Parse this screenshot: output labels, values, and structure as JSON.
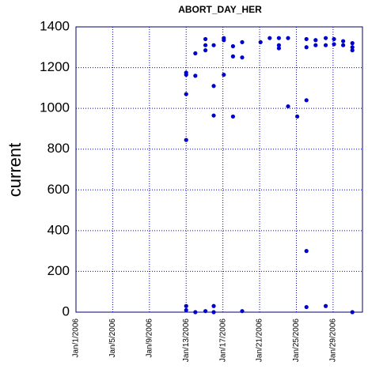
{
  "chart_data": {
    "type": "scatter",
    "title": "ABORT_DAY_HER",
    "y_label": "current",
    "xlim": [
      0,
      31.2
    ],
    "xticks": [
      {
        "value": 0,
        "label": "Jan/1/2006"
      },
      {
        "value": 4,
        "label": "Jan/5/2006"
      },
      {
        "value": 8,
        "label": "Jan/9/2006"
      },
      {
        "value": 12,
        "label": "Jan/13/2006"
      },
      {
        "value": 16,
        "label": "Jan/17/2006"
      },
      {
        "value": 20,
        "label": "Jan/21/2006"
      },
      {
        "value": 24,
        "label": "Jan/25/2006"
      },
      {
        "value": 28,
        "label": "Jan/29/2006"
      }
    ],
    "ylim": [
      0,
      1400
    ],
    "yticks": [
      0,
      200,
      400,
      600,
      800,
      1000,
      1200,
      1400
    ],
    "grid": true,
    "series": [
      {
        "color": "#0000cc",
        "x": [
          12.0,
          12.0,
          12.0,
          12.0,
          12.0,
          12.0,
          13.0,
          13.0,
          13.0,
          14.1,
          14.1,
          14.1,
          14.1,
          15.0,
          15.0,
          15.0,
          15.0,
          15.0,
          16.1,
          16.1,
          16.1,
          17.1,
          17.1,
          17.1,
          18.1,
          18.1,
          18.1,
          20.1,
          21.1,
          22.1,
          22.1,
          22.1,
          23.1,
          23.1,
          24.1,
          25.1,
          25.1,
          25.1,
          25.1,
          25.1,
          26.1,
          26.1,
          27.2,
          27.2,
          27.2,
          28.1,
          28.1,
          29.1,
          29.1,
          30.1,
          30.1,
          30.1,
          30.1
        ],
        "values": [
          1175,
          1165,
          1070,
          845,
          30,
          10,
          1270,
          1160,
          0,
          1340,
          1310,
          1285,
          5,
          1310,
          1110,
          965,
          30,
          0,
          1345,
          1335,
          1165,
          1305,
          1255,
          960,
          1325,
          1250,
          5,
          1325,
          1345,
          1345,
          1310,
          1295,
          1345,
          1010,
          960,
          1340,
          1300,
          1040,
          300,
          25,
          1335,
          1310,
          1345,
          1310,
          30,
          1340,
          1315,
          1330,
          1310,
          1320,
          1300,
          1285,
          0
        ]
      }
    ]
  }
}
